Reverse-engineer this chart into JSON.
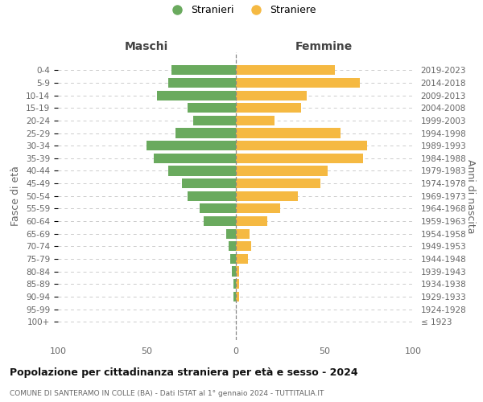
{
  "age_groups": [
    "100+",
    "95-99",
    "90-94",
    "85-89",
    "80-84",
    "75-79",
    "70-74",
    "65-69",
    "60-64",
    "55-59",
    "50-54",
    "45-49",
    "40-44",
    "35-39",
    "30-34",
    "25-29",
    "20-24",
    "15-19",
    "10-14",
    "5-9",
    "0-4"
  ],
  "birth_years": [
    "≤ 1923",
    "1924-1928",
    "1929-1933",
    "1934-1938",
    "1939-1943",
    "1944-1948",
    "1949-1953",
    "1954-1958",
    "1959-1963",
    "1964-1968",
    "1969-1973",
    "1974-1978",
    "1979-1983",
    "1984-1988",
    "1989-1993",
    "1994-1998",
    "1999-2003",
    "2004-2008",
    "2009-2013",
    "2014-2018",
    "2019-2023"
  ],
  "maschi": [
    0,
    0,
    1,
    1,
    2,
    3,
    4,
    5,
    18,
    20,
    27,
    30,
    38,
    46,
    50,
    34,
    24,
    27,
    44,
    38,
    36
  ],
  "femmine": [
    0,
    0,
    2,
    2,
    2,
    7,
    9,
    8,
    18,
    25,
    35,
    48,
    52,
    72,
    74,
    59,
    22,
    37,
    40,
    70,
    56
  ],
  "male_color": "#6aaa5e",
  "female_color": "#f5b942",
  "title": "Popolazione per cittadinanza straniera per età e sesso - 2024",
  "subtitle": "COMUNE DI SANTERAMO IN COLLE (BA) - Dati ISTAT al 1° gennaio 2024 - TUTTITALIA.IT",
  "ylabel_left": "Fasce di età",
  "ylabel_right": "Anni di nascita",
  "header_left": "Maschi",
  "header_right": "Femmine",
  "legend_male": "Stranieri",
  "legend_female": "Straniere",
  "xlim": 100,
  "background_color": "#ffffff",
  "grid_color": "#cccccc"
}
